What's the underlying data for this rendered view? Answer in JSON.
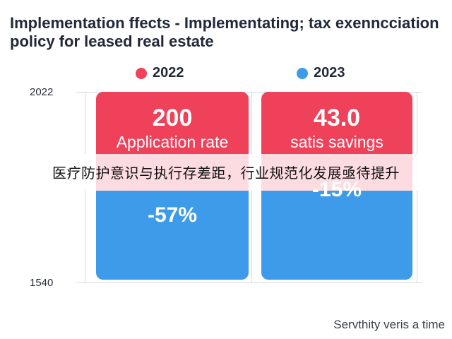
{
  "chart": {
    "title": "Implementation ffects - Implementating; tax exenncciation policy for leased real estate",
    "legend": [
      {
        "label": "2022",
        "color": "#f0415a"
      },
      {
        "label": "2023",
        "color": "#3d9be9"
      }
    ],
    "y_ticks": [
      "2022",
      "1540"
    ],
    "footer": "Servthity veris a time",
    "overlay": "医疗防护意识与执行存差距，行业规范化发展亟待提升"
  },
  "chart_data": {
    "type": "bar",
    "title": "Implementation ffects - Implementating; tax exenncciation policy for leased real estate",
    "series": [
      {
        "name": "2022",
        "color": "#f0415a"
      },
      {
        "name": "2023",
        "color": "#3d9be9"
      }
    ],
    "panels": [
      {
        "top_value": "200",
        "top_label": "Application rate",
        "bottom_value": "-57%",
        "top_color": "#f0415a",
        "bottom_color": "#3d9be9"
      },
      {
        "top_value": "43.0",
        "top_label": "satis savings",
        "bottom_value": "-15%",
        "top_color": "#f0415a",
        "bottom_color": "#3d9be9"
      }
    ],
    "y_tick_labels": [
      "2022",
      "1540"
    ],
    "xlabel": "",
    "ylabel": ""
  }
}
